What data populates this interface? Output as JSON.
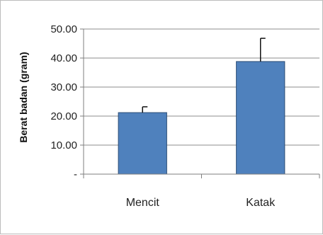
{
  "chart_data": {
    "type": "bar",
    "categories": [
      "Mencit",
      "Katak"
    ],
    "values": [
      21.2,
      38.8
    ],
    "error_bars": [
      2.0,
      8.0
    ],
    "title": "",
    "xlabel": "",
    "ylabel": "Berat badan (gram)",
    "ylim": [
      0,
      50
    ],
    "yticks": [
      0,
      10,
      20,
      30,
      40,
      50
    ],
    "ytick_labels": [
      "-",
      "10.00",
      "20.00",
      "30.00",
      "40.00",
      "50.00"
    ],
    "grid": true,
    "bar_color": "#4f81bd"
  }
}
